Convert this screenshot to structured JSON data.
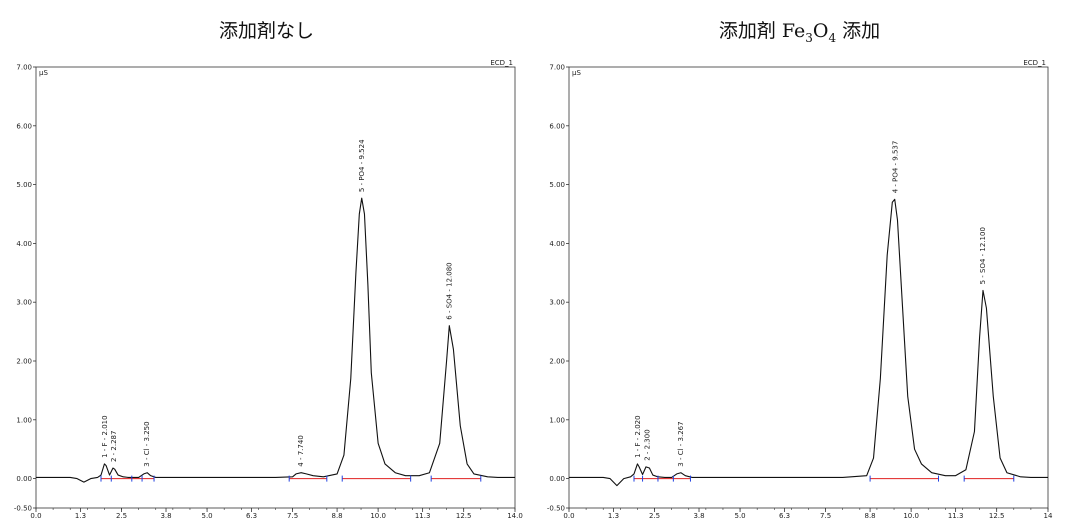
{
  "chart_data": [
    {
      "type": "line",
      "title": "添加剤なし",
      "title_parts": {
        "main": "添加剤なし",
        "formula": [],
        "suffix": ""
      },
      "unit_label": "µS",
      "channel_label": "ECD_1",
      "corner_mark": "",
      "xlim": [
        0,
        14
      ],
      "ylim": [
        -0.5,
        7.0
      ],
      "x_ticks": [
        "0.0",
        "1.3",
        "2.5",
        "3.8",
        "5.0",
        "6.3",
        "7.5",
        "8.8",
        "10.0",
        "11.3",
        "12.5",
        "14.0"
      ],
      "y_ticks": [
        "-0.50",
        "0.00",
        "1.00",
        "2.00",
        "3.00",
        "4.00",
        "5.00",
        "6.00",
        "7.00"
      ],
      "series": [
        {
          "x": [
            0.0,
            1.0,
            1.2,
            1.4,
            1.6,
            1.8,
            1.9,
            2.0,
            2.05,
            2.15,
            2.25,
            2.3,
            2.4,
            2.55,
            2.7,
            3.0,
            3.15,
            3.25,
            3.35,
            3.5,
            4.0,
            5.0,
            6.0,
            7.0,
            7.5,
            7.6,
            7.75,
            7.9,
            8.1,
            8.4,
            8.8,
            9.0,
            9.2,
            9.35,
            9.45,
            9.52,
            9.6,
            9.7,
            9.8,
            10.0,
            10.2,
            10.5,
            10.8,
            11.2,
            11.5,
            11.8,
            12.0,
            12.08,
            12.2,
            12.4,
            12.6,
            12.8,
            13.2,
            13.5,
            14.0
          ],
          "y": [
            0.02,
            0.02,
            0.0,
            -0.06,
            0.0,
            0.02,
            0.06,
            0.25,
            0.22,
            0.06,
            0.18,
            0.16,
            0.06,
            0.03,
            0.02,
            0.02,
            0.08,
            0.1,
            0.05,
            0.02,
            0.02,
            0.02,
            0.02,
            0.02,
            0.03,
            0.08,
            0.1,
            0.08,
            0.05,
            0.03,
            0.08,
            0.4,
            1.7,
            3.5,
            4.5,
            4.77,
            4.5,
            3.3,
            1.8,
            0.6,
            0.25,
            0.1,
            0.05,
            0.05,
            0.1,
            0.6,
            2.0,
            2.6,
            2.2,
            0.9,
            0.25,
            0.08,
            0.03,
            0.02,
            0.02
          ]
        }
      ],
      "annotations": [
        {
          "text": "1 - F - 2.010",
          "x": 2.01,
          "y": 0.25
        },
        {
          "text": "2 - 2.287",
          "x": 2.287,
          "y": 0.18
        },
        {
          "text": "3 - Cl - 3.250",
          "x": 3.25,
          "y": 0.1
        },
        {
          "text": "4 - 7.740",
          "x": 7.74,
          "y": 0.1
        },
        {
          "text": "5 - PO4 - 9.524",
          "x": 9.524,
          "y": 4.77
        },
        {
          "text": "6 - SO4 - 12.080",
          "x": 12.08,
          "y": 2.6
        }
      ],
      "baselines": [
        {
          "from": 1.9,
          "to": 3.45
        },
        {
          "from": 7.4,
          "to": 8.5
        },
        {
          "from": 8.95,
          "to": 10.95
        },
        {
          "from": 11.55,
          "to": 13.0
        }
      ],
      "markers": [
        1.9,
        2.2,
        2.8,
        3.1,
        3.45,
        7.4,
        8.5,
        8.95,
        10.95,
        11.55,
        13.0
      ]
    },
    {
      "type": "line",
      "title": "添加剤 Fe3O4 添加",
      "title_parts": {
        "main": "添加剤 ",
        "formula": [
          [
            "Fe",
            ""
          ],
          [
            "",
            "3"
          ],
          [
            "O",
            ""
          ],
          [
            "",
            "4"
          ]
        ],
        "suffix": " 添加"
      },
      "unit_label": "µS",
      "channel_label": "ECD_1",
      "corner_mark": "",
      "xlim": [
        0,
        14
      ],
      "ylim": [
        -0.5,
        7.0
      ],
      "x_ticks": [
        "0.0",
        "1.3",
        "2.5",
        "3.8",
        "5.0",
        "6.3",
        "7.5",
        "8.8",
        "10.0",
        "11.3",
        "12.5",
        "14"
      ],
      "y_ticks": [
        "-0.50",
        "0.00",
        "1.00",
        "2.00",
        "3.00",
        "4.00",
        "5.00",
        "6.00",
        "7.00"
      ],
      "series": [
        {
          "x": [
            0.0,
            1.0,
            1.2,
            1.4,
            1.6,
            1.8,
            1.9,
            2.0,
            2.05,
            2.15,
            2.25,
            2.35,
            2.45,
            2.6,
            2.8,
            3.0,
            3.15,
            3.27,
            3.4,
            3.6,
            4.0,
            5.0,
            6.0,
            7.0,
            8.0,
            8.7,
            8.9,
            9.1,
            9.3,
            9.45,
            9.52,
            9.6,
            9.75,
            9.9,
            10.1,
            10.3,
            10.6,
            11.0,
            11.3,
            11.6,
            11.85,
            12.0,
            12.1,
            12.2,
            12.4,
            12.6,
            12.8,
            13.2,
            13.5,
            14.0
          ],
          "y": [
            0.02,
            0.02,
            0.0,
            -0.12,
            0.0,
            0.03,
            0.08,
            0.25,
            0.2,
            0.07,
            0.2,
            0.18,
            0.06,
            0.03,
            0.02,
            0.02,
            0.08,
            0.1,
            0.05,
            0.02,
            0.02,
            0.02,
            0.02,
            0.02,
            0.02,
            0.05,
            0.35,
            1.7,
            3.8,
            4.7,
            4.75,
            4.4,
            2.9,
            1.4,
            0.5,
            0.25,
            0.1,
            0.05,
            0.05,
            0.15,
            0.8,
            2.4,
            3.2,
            2.9,
            1.4,
            0.35,
            0.1,
            0.03,
            0.02,
            0.02
          ]
        }
      ],
      "annotations": [
        {
          "text": "1 - F - 2.020",
          "x": 2.02,
          "y": 0.25
        },
        {
          "text": "2 - 2.300",
          "x": 2.3,
          "y": 0.2
        },
        {
          "text": "3 - Cl - 3.267",
          "x": 3.267,
          "y": 0.1
        },
        {
          "text": "4 - PO4 - 9.537",
          "x": 9.537,
          "y": 4.75
        },
        {
          "text": "5 - SO4 - 12.100",
          "x": 12.1,
          "y": 3.2
        }
      ],
      "baselines": [
        {
          "from": 1.9,
          "to": 3.55
        },
        {
          "from": 8.8,
          "to": 10.8
        },
        {
          "from": 11.55,
          "to": 13.0
        }
      ],
      "markers": [
        1.9,
        2.15,
        2.6,
        3.05,
        3.55,
        8.8,
        10.8,
        11.55,
        13.0
      ]
    }
  ]
}
